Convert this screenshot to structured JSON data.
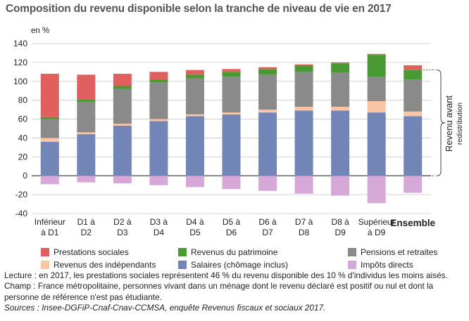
{
  "title": "Composition du revenu disponible selon la tranche de niveau de vie en 2017",
  "unit_label": "en %",
  "right_label": {
    "line1": "Revenu avant",
    "line2": "redistribution"
  },
  "chart_data": {
    "type": "bar",
    "stacked": true,
    "ylim": [
      -40,
      140
    ],
    "yticks": [
      -40,
      -20,
      0,
      20,
      40,
      60,
      80,
      100,
      120,
      140
    ],
    "grid": true,
    "categories": [
      [
        "Inférieur",
        "à D1"
      ],
      [
        "D1 à",
        "D2"
      ],
      [
        "D2 à",
        "D3"
      ],
      [
        "D3 à",
        "D4"
      ],
      [
        "D4 à",
        "D5"
      ],
      [
        "D5 à",
        "D6"
      ],
      [
        "D6 à",
        "D7"
      ],
      [
        "D7 à",
        "D8"
      ],
      [
        "D8 à",
        "D9"
      ],
      [
        "Supérieur",
        "à D9"
      ],
      [
        "Ensemble"
      ]
    ],
    "series": [
      {
        "name": "Salaires (chômage inclus)",
        "color": "#7285b7",
        "values": [
          36,
          44,
          53,
          58,
          63,
          65,
          67,
          69,
          69,
          67,
          63
        ]
      },
      {
        "name": "Revenus des indépendants",
        "color": "#fac4a5",
        "values": [
          4,
          2,
          2,
          2,
          2,
          2,
          3,
          4,
          4,
          12,
          5
        ]
      },
      {
        "name": "Pensions et retraites",
        "color": "#8a8a8a",
        "values": [
          20,
          32,
          37,
          39,
          38,
          38,
          37,
          37,
          36,
          26,
          34
        ]
      },
      {
        "name": "Revenus du patrimoine",
        "color": "#4a9a34",
        "values": [
          2,
          3,
          3,
          3,
          4,
          5,
          6,
          7,
          10,
          23,
          10
        ]
      },
      {
        "name": "Prestations sociales",
        "color": "#e06060",
        "values": [
          46,
          26,
          13,
          8,
          5,
          3,
          2,
          1,
          1,
          1,
          5
        ]
      },
      {
        "name": "Impôts directs",
        "color": "#d6a8d8",
        "values": [
          -9,
          -7,
          -8,
          -10,
          -12,
          -14,
          -16,
          -19,
          -21,
          -29,
          -18
        ]
      }
    ],
    "legend_order": [
      "Prestations sociales",
      "Revenus du patrimoine",
      "Pensions et retraites",
      "Revenus des indépendants",
      "Salaires (chômage inclus)",
      "Impôts directs"
    ]
  },
  "notes": {
    "lecture": "Lecture : en 2017, les prestations sociales représentent 46 % du revenu disponible des 10 % d'individus les moins aisés.",
    "champ": "Champ : France métropolitaine, personnes vivant dans un ménage dont le revenu déclaré est positif ou nul et dont la personne de référence n'est pas étudiante.",
    "sources": "Sources : Insee-DGFiP-Cnaf-Cnav-CCMSA, enquête Revenus fiscaux et sociaux 2017."
  }
}
